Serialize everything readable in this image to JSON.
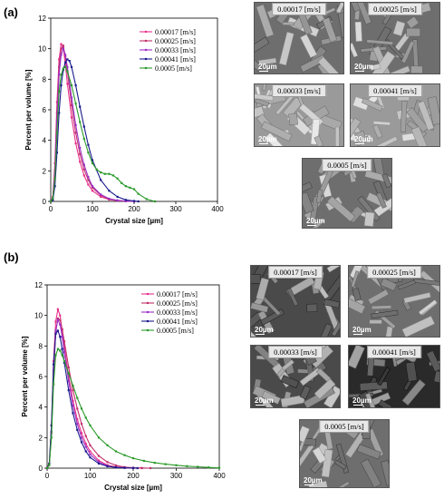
{
  "panels": [
    {
      "label": "(a)",
      "micrograph_labels": [
        "0.00017 [m/s]",
        "0.00025 [m/s]",
        "0.00033 [m/s]",
        "0.00041 [m/s]",
        "0.0005 [m/s]"
      ],
      "scale_text": "20µm"
    },
    {
      "label": "(b)",
      "micrograph_labels": [
        "0.00017 [m/s]",
        "0.00025 [m/s]",
        "0.00033 [m/s]",
        "0.00041 [m/s]",
        "0.0005 [m/s]"
      ],
      "scale_text": "20µm"
    }
  ],
  "colors": {
    "s1": "#e8308a",
    "s2": "#c0306a",
    "s3": "#9b30c8",
    "s4": "#1a1a8c",
    "s5": "#2a9a2a"
  },
  "chart_data": [
    {
      "type": "line",
      "xlabel": "Crystal size [µm]",
      "ylabel": "Percent per volume [%]",
      "xlim": [
        0,
        400
      ],
      "ylim": [
        0,
        12
      ],
      "xticks": [
        "0",
        "100",
        "200",
        "300",
        "400"
      ],
      "yticks": [
        "0",
        "2",
        "4",
        "6",
        "8",
        "10",
        "12"
      ],
      "legend_position": "top-right",
      "series": [
        {
          "name": "0.00017  [m/s]",
          "color": "#e8308a",
          "x": [
            0,
            5,
            10,
            15,
            20,
            25,
            30,
            35,
            40,
            50,
            60,
            70,
            80,
            90,
            100,
            120,
            140,
            160,
            180,
            200
          ],
          "y": [
            0,
            0.3,
            2.5,
            6.5,
            9.3,
            10.3,
            10.1,
            9.0,
            7.7,
            5.5,
            3.8,
            2.6,
            1.7,
            1.1,
            0.7,
            0.3,
            0.12,
            0.05,
            0.02,
            0
          ]
        },
        {
          "name": "0.00025  [m/s]",
          "color": "#c0306a",
          "x": [
            0,
            5,
            10,
            15,
            20,
            25,
            30,
            35,
            40,
            50,
            60,
            70,
            80,
            90,
            100,
            120,
            140,
            160,
            180,
            200
          ],
          "y": [
            0,
            0.2,
            2.0,
            5.8,
            8.8,
            10.0,
            10.2,
            9.5,
            8.5,
            6.3,
            4.5,
            3.1,
            2.1,
            1.4,
            0.9,
            0.4,
            0.15,
            0.06,
            0.02,
            0
          ]
        },
        {
          "name": "0.00033  [m/s]",
          "color": "#9b30c8",
          "x": [
            0,
            5,
            10,
            15,
            20,
            25,
            30,
            35,
            40,
            50,
            60,
            70,
            80,
            90,
            100,
            120,
            140,
            160,
            180,
            200
          ],
          "y": [
            0,
            0.2,
            1.8,
            5.3,
            8.3,
            9.6,
            10.0,
            9.6,
            8.8,
            6.8,
            5.0,
            3.5,
            2.4,
            1.6,
            1.0,
            0.45,
            0.18,
            0.07,
            0.02,
            0
          ]
        },
        {
          "name": "0.00041  [m/s]",
          "color": "#1a1a8c",
          "x": [
            0,
            5,
            10,
            15,
            20,
            25,
            30,
            35,
            40,
            45,
            50,
            60,
            70,
            80,
            90,
            100,
            120,
            140,
            160,
            180,
            200,
            210
          ],
          "y": [
            0,
            0.1,
            1.0,
            3.2,
            5.8,
            7.6,
            8.6,
            9.1,
            9.3,
            9.2,
            8.8,
            7.6,
            6.2,
            4.9,
            3.7,
            2.7,
            1.4,
            0.7,
            0.3,
            0.1,
            0.03,
            0
          ]
        },
        {
          "name": "0.0005  [m/s]",
          "color": "#2a9a2a",
          "x": [
            0,
            5,
            10,
            15,
            20,
            25,
            30,
            35,
            40,
            50,
            60,
            70,
            80,
            90,
            100,
            110,
            120,
            130,
            140,
            150,
            160,
            170,
            180,
            190,
            200,
            210,
            230,
            250
          ],
          "y": [
            0,
            0.2,
            1.5,
            4.5,
            7.2,
            8.3,
            8.7,
            8.8,
            8.5,
            7.6,
            6.4,
            5.2,
            4.1,
            3.2,
            2.5,
            2.1,
            1.9,
            1.8,
            1.8,
            1.7,
            1.5,
            1.2,
            1.0,
            0.9,
            0.8,
            0.5,
            0.15,
            0
          ]
        }
      ]
    },
    {
      "type": "line",
      "xlabel": "Crystal size [µm]",
      "ylabel": "Percent per volume [%]",
      "xlim": [
        0,
        400
      ],
      "ylim": [
        0,
        12
      ],
      "xticks": [
        "0",
        "100",
        "200",
        "300",
        "400"
      ],
      "yticks": [
        "0",
        "2",
        "4",
        "6",
        "8",
        "10",
        "12"
      ],
      "legend_position": "top-right",
      "series": [
        {
          "name": "0.00017 [m/s]",
          "color": "#e8308a",
          "x": [
            0,
            5,
            10,
            15,
            20,
            25,
            30,
            35,
            40,
            50,
            60,
            70,
            80,
            90,
            100,
            120,
            140,
            160,
            180,
            200,
            220
          ],
          "y": [
            0,
            0.3,
            2.8,
            7.0,
            9.6,
            10.4,
            10.0,
            9.0,
            7.9,
            6.0,
            4.4,
            3.2,
            2.3,
            1.6,
            1.1,
            0.5,
            0.2,
            0.08,
            0.03,
            0.01,
            0
          ]
        },
        {
          "name": "0.00025 [m/s]",
          "color": "#c0306a",
          "x": [
            0,
            5,
            10,
            15,
            20,
            25,
            30,
            35,
            40,
            50,
            60,
            70,
            80,
            90,
            100,
            120,
            140,
            160,
            180,
            200,
            220,
            240
          ],
          "y": [
            0,
            0.2,
            2.3,
            6.2,
            8.9,
            9.8,
            9.7,
            9.1,
            8.3,
            6.6,
            5.1,
            3.9,
            2.9,
            2.1,
            1.5,
            0.8,
            0.4,
            0.18,
            0.07,
            0.03,
            0.01,
            0
          ]
        },
        {
          "name": "0.00033 [m/s]",
          "color": "#9b30c8",
          "x": [
            0,
            5,
            10,
            15,
            20,
            25,
            30,
            35,
            40,
            50,
            60,
            70,
            80,
            90,
            100,
            120,
            140,
            160,
            180,
            200
          ],
          "y": [
            0,
            0.25,
            2.4,
            6.4,
            9.0,
            9.7,
            9.4,
            8.6,
            7.6,
            5.7,
            4.1,
            2.9,
            2.0,
            1.4,
            0.9,
            0.4,
            0.15,
            0.06,
            0.02,
            0
          ]
        },
        {
          "name": "0.00041 [m/s]",
          "color": "#1a1a8c",
          "x": [
            0,
            5,
            10,
            15,
            20,
            25,
            30,
            35,
            40,
            50,
            60,
            70,
            80,
            90,
            100,
            120,
            140,
            160,
            180,
            200,
            210
          ],
          "y": [
            0,
            0.3,
            2.8,
            6.8,
            8.8,
            9.0,
            8.6,
            7.8,
            6.9,
            5.1,
            3.6,
            2.5,
            1.7,
            1.1,
            0.7,
            0.3,
            0.12,
            0.05,
            0.02,
            0.01,
            0
          ]
        },
        {
          "name": "0.0005 [m/s]",
          "color": "#2a9a2a",
          "x": [
            0,
            5,
            10,
            15,
            20,
            25,
            30,
            35,
            40,
            50,
            60,
            70,
            80,
            90,
            100,
            120,
            140,
            160,
            180,
            200,
            225,
            250,
            275,
            300,
            325,
            350,
            375,
            400
          ],
          "y": [
            0,
            0.2,
            2.0,
            5.5,
            7.4,
            7.8,
            7.7,
            7.4,
            7.0,
            6.2,
            5.4,
            4.6,
            3.9,
            3.3,
            2.8,
            2.0,
            1.5,
            1.1,
            0.85,
            0.65,
            0.48,
            0.35,
            0.26,
            0.19,
            0.13,
            0.09,
            0.05,
            0.02
          ]
        }
      ]
    }
  ]
}
